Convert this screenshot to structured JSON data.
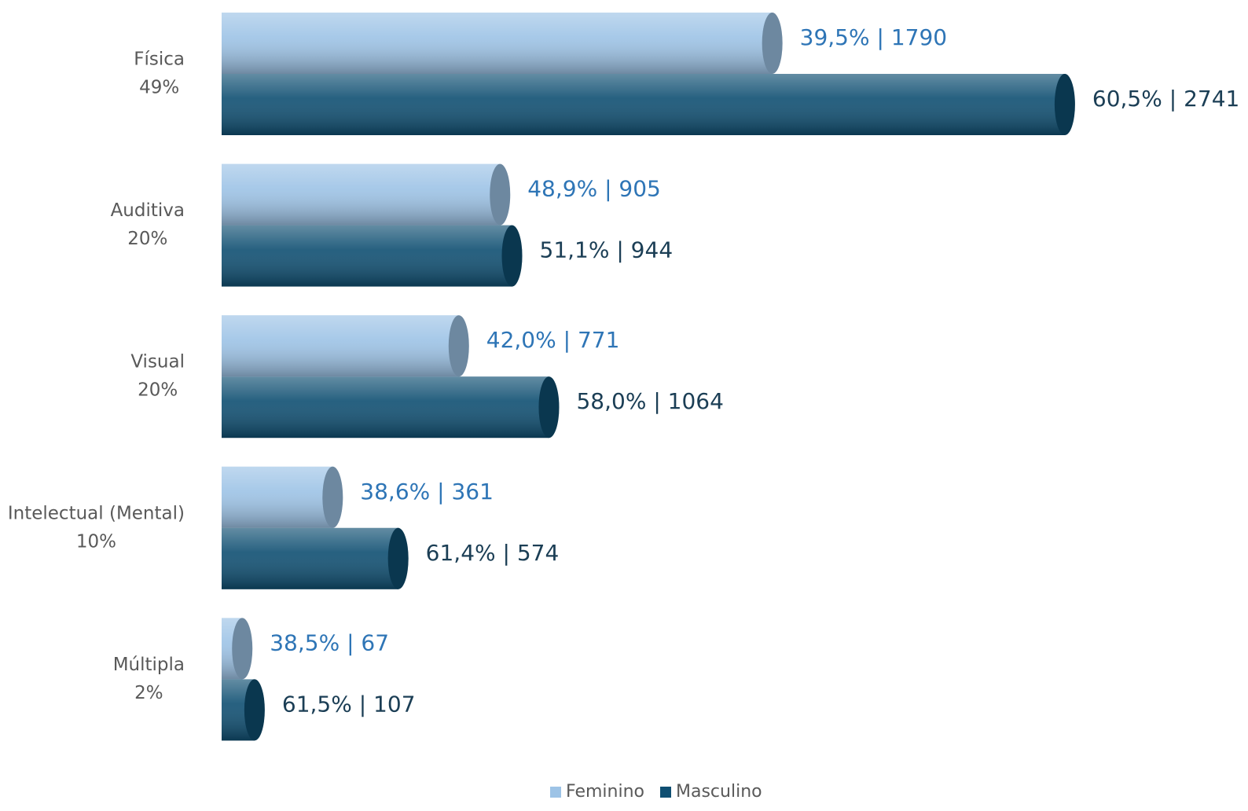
{
  "chart_data": {
    "type": "bar",
    "orientation": "horizontal",
    "categories": [
      [
        "Física",
        "49%"
      ],
      [
        "Auditiva",
        "20%"
      ],
      [
        "Visual",
        "20%"
      ],
      [
        "Intelectual (Mental)",
        "10%"
      ],
      [
        "Múltipla",
        "2%"
      ]
    ],
    "series": [
      {
        "name": "Feminino",
        "color": "#9dc3e6",
        "label_color": "#2e75b6",
        "values": [
          1790,
          905,
          771,
          361,
          67
        ],
        "value_labels": [
          "39,5% | 1790",
          "48,9% | 905",
          "42,0% | 771",
          "38,6% | 361",
          "38,5% | 67"
        ]
      },
      {
        "name": "Masculino",
        "color": "#0f4f72",
        "label_color": "#1b3e55",
        "values": [
          2741,
          944,
          1064,
          574,
          107
        ],
        "value_labels": [
          "60,5% | 2741",
          "51,1% | 944",
          "58,0% | 1064",
          "61,4% | 574",
          "61,5% | 107"
        ]
      }
    ],
    "xlim": [
      0,
      2800
    ],
    "legend": "bottom"
  }
}
